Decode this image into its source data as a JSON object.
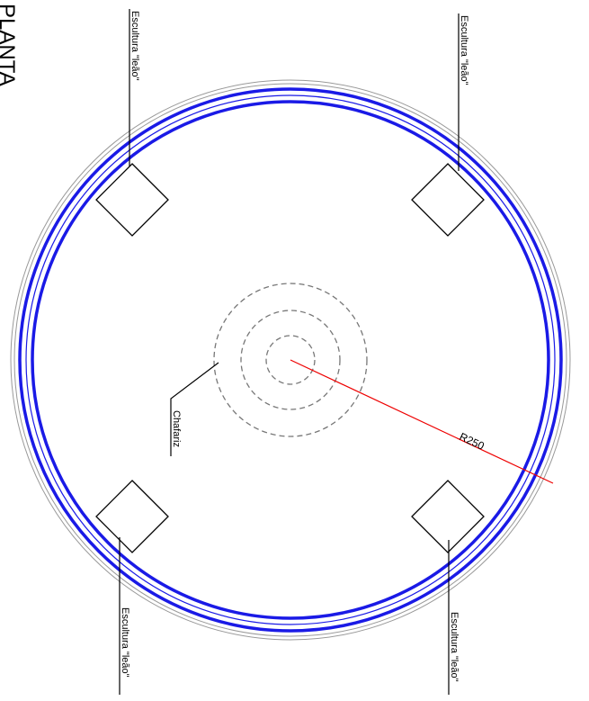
{
  "title": "PLANTA",
  "sculptures": [
    {
      "label": "Escultura \"leão\""
    },
    {
      "label": "Escultura \"leão\""
    },
    {
      "label": "Escultura \"leão\""
    },
    {
      "label": "Escultura \"leão\""
    }
  ],
  "fountain": {
    "label": "Chafariz"
  },
  "radius": {
    "label": "R250"
  }
}
